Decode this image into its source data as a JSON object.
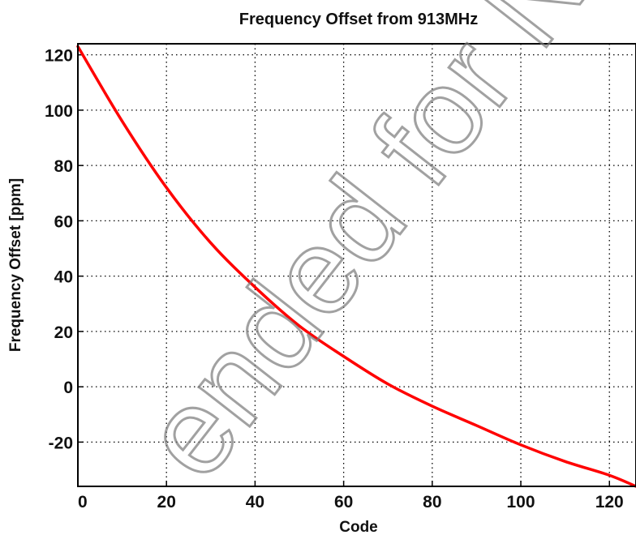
{
  "chart_data": {
    "type": "line",
    "title": "Frequency Offset from 913MHz",
    "xlabel": "Code",
    "ylabel": "Frequency Offset [ppm]",
    "xlim": [
      0,
      126
    ],
    "ylim": [
      -36,
      124
    ],
    "xticks": [
      0,
      20,
      40,
      60,
      80,
      100,
      120
    ],
    "yticks": [
      -20,
      0,
      20,
      40,
      60,
      80,
      100,
      120
    ],
    "grid": true,
    "series": [
      {
        "color": "#ff0000",
        "x": [
          0,
          10,
          20,
          30,
          40,
          50,
          60,
          70,
          80,
          90,
          100,
          110,
          120,
          126
        ],
        "y": [
          123,
          96,
          72,
          52,
          36,
          22,
          11,
          1,
          -7,
          -14,
          -21,
          -27,
          -32,
          -36
        ]
      }
    ]
  },
  "watermark": "ended for New"
}
